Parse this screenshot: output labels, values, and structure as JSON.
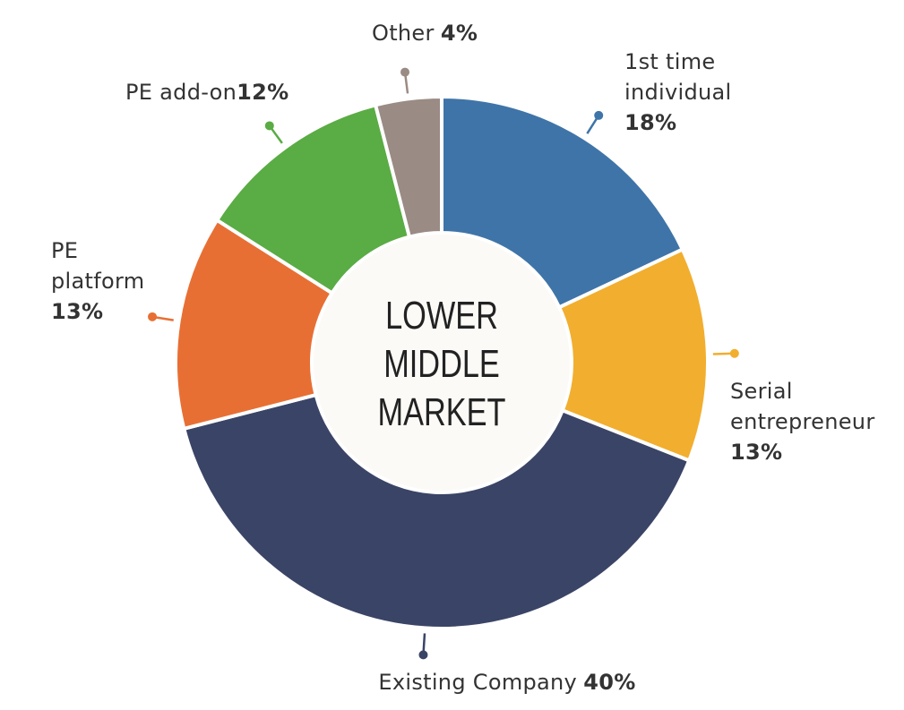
{
  "chart_data": {
    "type": "donut",
    "center_label": [
      "LOWER",
      "MIDDLE",
      "MARKET"
    ],
    "categories": [
      "1st time individual",
      "Serial entrepreneur",
      "Existing Company",
      "PE platform",
      "PE add-on",
      "Other"
    ],
    "values": [
      18,
      13,
      40,
      13,
      12,
      4
    ],
    "value_labels": [
      "18%",
      "13%",
      "40%",
      "13%",
      "12%",
      "4%"
    ],
    "colors": [
      "#3f74a8",
      "#f2ae2e",
      "#3a4466",
      "#e86f34",
      "#5aac44",
      "#9a8b84"
    ]
  }
}
